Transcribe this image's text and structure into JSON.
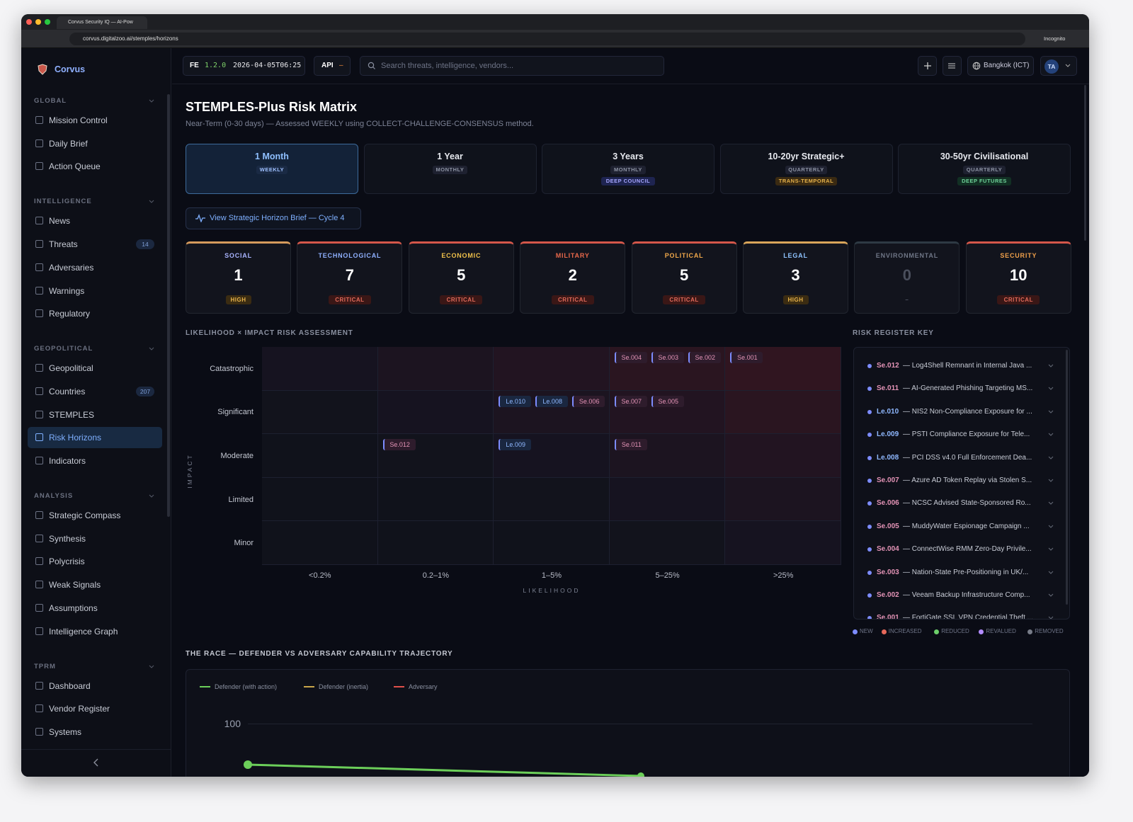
{
  "browser": {
    "tab_title": "Corvus Security IQ — AI-Pow",
    "url": "corvus.digitalzoo.ai/stemples/horizons",
    "incognito": "Incognito"
  },
  "sidebar": {
    "brand": "Corvus",
    "active": "Risk Horizons",
    "sections": [
      {
        "title": "GLOBAL",
        "items": [
          {
            "label": "Mission Control"
          },
          {
            "label": "Daily Brief"
          },
          {
            "label": "Action Queue"
          }
        ]
      },
      {
        "title": "INTELLIGENCE",
        "items": [
          {
            "label": "News"
          },
          {
            "label": "Threats",
            "badge": "14"
          },
          {
            "label": "Adversaries"
          },
          {
            "label": "Warnings"
          },
          {
            "label": "Regulatory"
          }
        ]
      },
      {
        "title": "GEOPOLITICAL",
        "items": [
          {
            "label": "Geopolitical"
          },
          {
            "label": "Countries",
            "badge": "207"
          },
          {
            "label": "STEMPLES"
          },
          {
            "label": "Risk Horizons"
          },
          {
            "label": "Indicators"
          }
        ]
      },
      {
        "title": "ANALYSIS",
        "items": [
          {
            "label": "Strategic Compass"
          },
          {
            "label": "Synthesis"
          },
          {
            "label": "Polycrisis"
          },
          {
            "label": "Weak Signals"
          },
          {
            "label": "Assumptions"
          },
          {
            "label": "Intelligence Graph"
          }
        ]
      },
      {
        "title": "TPRM",
        "items": [
          {
            "label": "Dashboard"
          },
          {
            "label": "Vendor Register"
          },
          {
            "label": "Systems"
          }
        ]
      }
    ]
  },
  "topbar": {
    "fe": "FE",
    "version": "1.2.0",
    "timestamp": "2026-04-05T06:25",
    "api": "API",
    "api_status": "–",
    "search_placeholder": "Search threats, intelligence, vendors...",
    "timezone": "Bangkok (ICT)",
    "avatar": "TA"
  },
  "header": {
    "title": "STEMPLES-Plus Risk Matrix",
    "subtitle": "Near-Term (0-30 days) — Assessed WEEKLY using COLLECT-CHALLENGE-CONSENSUS method."
  },
  "horizons": [
    {
      "title": "1 Month",
      "tags": [
        "WEEKLY"
      ]
    },
    {
      "title": "1 Year",
      "tags": [
        "MONTHLY"
      ]
    },
    {
      "title": "3 Years",
      "tags": [
        "MONTHLY",
        "DEEP COUNCIL"
      ]
    },
    {
      "title": "10-20yr Strategic+",
      "tags": [
        "QUARTERLY",
        "TRANS-TEMPORAL"
      ]
    },
    {
      "title": "30-50yr Civilisational",
      "tags": [
        "QUARTERLY",
        "DEEP FUTURES"
      ]
    }
  ],
  "brief_link": "View Strategic Horizon Brief — Cycle 4",
  "stemples": [
    {
      "name": "SOCIAL",
      "count": 1,
      "level": "HIGH"
    },
    {
      "name": "TECHNOLOGICAL",
      "count": 7,
      "level": "CRITICAL"
    },
    {
      "name": "ECONOMIC",
      "count": 5,
      "level": "CRITICAL"
    },
    {
      "name": "MILITARY",
      "count": 2,
      "level": "CRITICAL"
    },
    {
      "name": "POLITICAL",
      "count": 5,
      "level": "CRITICAL"
    },
    {
      "name": "LEGAL",
      "count": 3,
      "level": "HIGH"
    },
    {
      "name": "ENVIRONMENTAL",
      "count": 0,
      "level": "–"
    },
    {
      "name": "SECURITY",
      "count": 10,
      "level": "CRITICAL"
    }
  ],
  "matrix": {
    "title": "LIKELIHOOD × IMPACT RISK ASSESSMENT",
    "y_label": "IMPACT",
    "x_label": "LIKELIHOOD",
    "rows": [
      "Catastrophic",
      "Significant",
      "Moderate",
      "Limited",
      "Minor"
    ],
    "cols": [
      "<0.2%",
      "0.2–1%",
      "1–5%",
      "5–25%",
      ">25%"
    ],
    "cells": [
      [
        [],
        [],
        [],
        [
          "Se.004",
          "Se.003",
          "Se.002"
        ],
        [
          "Se.001"
        ]
      ],
      [
        [],
        [],
        [
          "Le.010",
          "Le.008",
          "Se.006"
        ],
        [
          "Se.007",
          "Se.005"
        ],
        []
      ],
      [
        [],
        [
          "Se.012"
        ],
        [
          "Le.009"
        ],
        [
          "Se.011"
        ],
        []
      ],
      [
        [],
        [],
        [],
        [],
        []
      ],
      [
        [],
        [],
        [],
        [],
        []
      ]
    ]
  },
  "register": {
    "title": "RISK REGISTER KEY",
    "items": [
      {
        "id": "Se.012",
        "text": "— Log4Shell Remnant in Internal Java ..."
      },
      {
        "id": "Se.011",
        "text": "— AI-Generated Phishing Targeting MS..."
      },
      {
        "id": "Le.010",
        "text": "— NIS2 Non-Compliance Exposure for ..."
      },
      {
        "id": "Le.009",
        "text": "— PSTI Compliance Exposure for Tele..."
      },
      {
        "id": "Le.008",
        "text": "— PCI DSS v4.0 Full Enforcement Dea..."
      },
      {
        "id": "Se.007",
        "text": "— Azure AD Token Replay via Stolen S..."
      },
      {
        "id": "Se.006",
        "text": "— NCSC Advised State-Sponsored Ro..."
      },
      {
        "id": "Se.005",
        "text": "— MuddyWater Espionage Campaign ..."
      },
      {
        "id": "Se.004",
        "text": "— ConnectWise RMM Zero-Day Privile..."
      },
      {
        "id": "Se.003",
        "text": "— Nation-State Pre-Positioning in UK/..."
      },
      {
        "id": "Se.002",
        "text": "— Veeam Backup Infrastructure Comp..."
      },
      {
        "id": "Se.001",
        "text": "— FortiGate SSL VPN Credential Theft ..."
      }
    ],
    "legend": [
      "NEW",
      "INCREASED",
      "REDUCED",
      "REVALUED",
      "REMOVED"
    ]
  },
  "race": {
    "title": "THE RACE — DEFENDER VS ADVERSARY CAPABILITY TRAJECTORY",
    "legend": [
      "Defender (with action)",
      "Defender (inertia)",
      "Adversary"
    ],
    "ytick": "100"
  }
}
